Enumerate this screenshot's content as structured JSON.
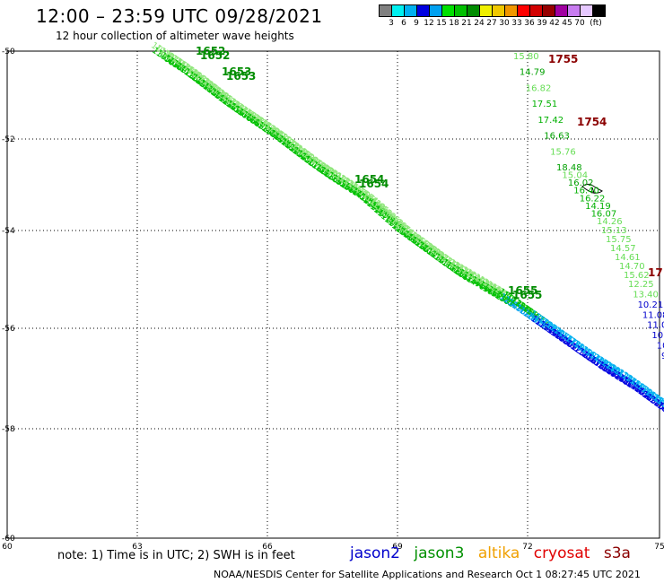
{
  "title": "12:00 – 23:59 UTC 09/28/2021",
  "subtitle": "12 hour collection of altimeter wave heights",
  "legend": {
    "unit": "(ft)",
    "colors": [
      "#808080",
      "#00f0f0",
      "#00b0f0",
      "#0000e0",
      "#00a0f0",
      "#00e000",
      "#00c000",
      "#008c00",
      "#f0f000",
      "#f0c800",
      "#f09600",
      "#ff0000",
      "#d20000",
      "#960000",
      "#a000a0",
      "#c87cf0",
      "#e6c8ff",
      "#000000"
    ],
    "labels": [
      "3",
      "6",
      "9",
      "12",
      "15",
      "18",
      "21",
      "24",
      "27",
      "30",
      "33",
      "36",
      "39",
      "42",
      "45",
      "70"
    ]
  },
  "axes": {
    "lon_ticks": [
      "60",
      "63",
      "66",
      "69",
      "72",
      "75"
    ],
    "lat_ticks": [
      "-50",
      "-52",
      "-54",
      "-56",
      "-58",
      "-60"
    ]
  },
  "tracks": {
    "jason3_times": [
      "1652",
      "1653",
      "1654",
      "1655"
    ],
    "jason3_times_shadow": [
      "1652",
      "1653",
      "1654",
      "1655"
    ],
    "cryosat_times": [
      "1755",
      "1754",
      "17"
    ],
    "cryosat_label_values": [
      "15.80",
      "14.79",
      "16.82",
      "17.51",
      "17.42",
      "16.63",
      "15.76",
      "18.48",
      "15.04",
      "16.02",
      "16.40",
      "16.22",
      "14.19",
      "16.07",
      "14.26",
      "15.13",
      "15.75",
      "14.57",
      "14.61",
      "14.70",
      "15.62",
      "12.25",
      "13.40",
      "10.21",
      "11.08",
      "11.01",
      "10.2",
      "10",
      "9"
    ]
  },
  "note": "note:  1) Time is in UTC;  2) SWH is in feet",
  "satellites": [
    {
      "name": "jason2",
      "color": "#0000cc"
    },
    {
      "name": "jason3",
      "color": "#009000"
    },
    {
      "name": "altika",
      "color": "#f0a000"
    },
    {
      "name": "cryosat",
      "color": "#e00000"
    },
    {
      "name": "s3a",
      "color": "#8b0000"
    }
  ],
  "credit": "NOAA/NESDIS Center for Satellite Applications and Research    Oct  1 08:27:45 UTC 2021"
}
